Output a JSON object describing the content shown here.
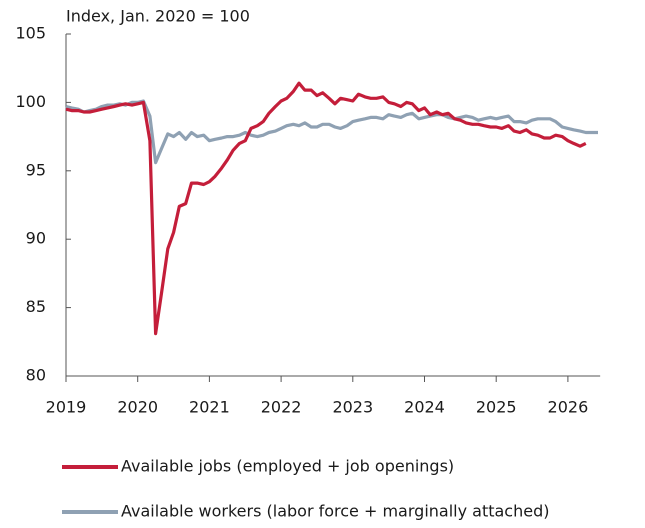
{
  "chart_data": {
    "type": "line",
    "title": "Index, Jan. 2020 = 100",
    "x": [
      2019.0,
      2019.08,
      2019.17,
      2019.25,
      2019.33,
      2019.42,
      2019.5,
      2019.58,
      2019.67,
      2019.75,
      2019.83,
      2019.92,
      2020.0,
      2020.08,
      2020.17,
      2020.25,
      2020.33,
      2020.42,
      2020.5,
      2020.58,
      2020.67,
      2020.75,
      2020.83,
      2020.92,
      2021.0,
      2021.08,
      2021.17,
      2021.25,
      2021.33,
      2021.42,
      2021.5,
      2021.58,
      2021.67,
      2021.75,
      2021.83,
      2021.92,
      2022.0,
      2022.08,
      2022.17,
      2022.25,
      2022.33,
      2022.42,
      2022.5,
      2022.58,
      2022.67,
      2022.75,
      2022.83,
      2022.92,
      2023.0,
      2023.08,
      2023.17,
      2023.25,
      2023.33,
      2023.42,
      2023.5,
      2023.58,
      2023.67,
      2023.75,
      2023.83,
      2023.92,
      2024.0,
      2024.08,
      2024.17,
      2024.25,
      2024.33,
      2024.42,
      2024.5,
      2024.58,
      2024.67,
      2024.75,
      2024.83,
      2024.92,
      2025.0,
      2025.08,
      2025.17,
      2025.25,
      2025.33,
      2025.42,
      2025.5,
      2025.58,
      2025.67,
      2025.75,
      2025.83,
      2025.92,
      2026.0,
      2026.08,
      2026.17,
      2026.25,
      2026.33,
      2026.42
    ],
    "series": [
      {
        "name": "Available jobs (employed + job openings)",
        "color": "#c41e3a",
        "values": [
          99.5,
          99.4,
          99.4,
          99.3,
          99.3,
          99.4,
          99.5,
          99.6,
          99.7,
          99.8,
          99.9,
          99.8,
          99.9,
          100.0,
          97.2,
          83.1,
          86.0,
          89.3,
          90.5,
          92.4,
          92.6,
          94.1,
          94.1,
          94.0,
          94.2,
          94.6,
          95.2,
          95.8,
          96.5,
          97.0,
          97.2,
          98.1,
          98.3,
          98.6,
          99.2,
          99.7,
          100.1,
          100.3,
          100.8,
          101.4,
          100.9,
          100.9,
          100.5,
          100.7,
          100.3,
          99.9,
          100.3,
          100.2,
          100.1,
          100.6,
          100.4,
          100.3,
          100.3,
          100.4,
          100.0,
          99.9,
          99.7,
          100.0,
          99.9,
          99.4,
          99.6,
          99.1,
          99.3,
          99.1,
          99.2,
          98.8,
          98.7,
          98.5,
          98.4,
          98.4,
          98.3,
          98.2,
          98.2,
          98.1,
          98.3,
          97.9,
          97.8,
          98.0,
          97.7,
          97.6,
          97.4,
          97.4,
          97.6,
          97.5,
          97.2,
          97.0,
          96.8,
          97.0,
          null,
          null
        ]
      },
      {
        "name": "Available workers (labor force + marginally attached)",
        "color": "#8fa1b3",
        "values": [
          99.7,
          99.6,
          99.5,
          99.3,
          99.4,
          99.5,
          99.7,
          99.8,
          99.8,
          99.9,
          99.8,
          100.0,
          100.0,
          100.1,
          99.0,
          95.6,
          96.6,
          97.7,
          97.5,
          97.8,
          97.3,
          97.8,
          97.5,
          97.6,
          97.2,
          97.3,
          97.4,
          97.5,
          97.5,
          97.6,
          97.8,
          97.6,
          97.5,
          97.6,
          97.8,
          97.9,
          98.1,
          98.3,
          98.4,
          98.3,
          98.5,
          98.2,
          98.2,
          98.4,
          98.4,
          98.2,
          98.1,
          98.3,
          98.6,
          98.7,
          98.8,
          98.9,
          98.9,
          98.8,
          99.1,
          99.0,
          98.9,
          99.1,
          99.2,
          98.8,
          98.9,
          99.0,
          99.1,
          99.1,
          98.9,
          98.8,
          98.9,
          99.0,
          98.9,
          98.7,
          98.8,
          98.9,
          98.8,
          98.9,
          99.0,
          98.6,
          98.6,
          98.5,
          98.7,
          98.8,
          98.8,
          98.8,
          98.6,
          98.2,
          98.1,
          98.0,
          97.9,
          97.8,
          97.8,
          97.8
        ]
      }
    ],
    "xlim": [
      2019,
      2026.45
    ],
    "xticks": [
      2019,
      2020,
      2021,
      2022,
      2023,
      2024,
      2025,
      2026
    ],
    "ylim": [
      80,
      105
    ],
    "yticks": [
      80,
      85,
      90,
      95,
      100,
      105
    ],
    "grid": false,
    "legend": "bottom"
  }
}
